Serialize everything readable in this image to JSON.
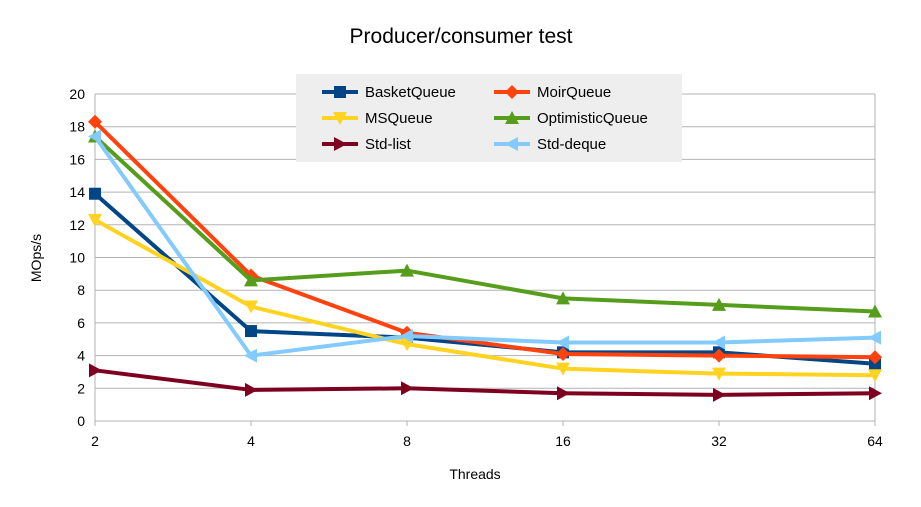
{
  "chart_data": {
    "type": "line",
    "title": "Producer/consumer test",
    "xlabel": "Threads",
    "ylabel": "MOps/s",
    "categories": [
      "2",
      "4",
      "8",
      "16",
      "32",
      "64"
    ],
    "ylim": [
      0,
      20
    ],
    "yticks": [
      0,
      2,
      4,
      6,
      8,
      10,
      12,
      14,
      16,
      18,
      20
    ],
    "grid": true,
    "legend_position": "top-center",
    "series": [
      {
        "name": "BasketQueue",
        "color": "#004586",
        "marker": "square",
        "values": [
          13.9,
          5.5,
          5.1,
          4.2,
          4.2,
          3.5
        ]
      },
      {
        "name": "MoirQueue",
        "color": "#ff420e",
        "marker": "diamond",
        "values": [
          18.3,
          8.9,
          5.4,
          4.1,
          4.0,
          3.9
        ]
      },
      {
        "name": "MSQueue",
        "color": "#ffd320",
        "marker": "triangle-down",
        "values": [
          12.3,
          7.0,
          4.7,
          3.2,
          2.9,
          2.8
        ]
      },
      {
        "name": "OptimisticQueue",
        "color": "#579d1c",
        "marker": "triangle-up",
        "values": [
          17.4,
          8.6,
          9.2,
          7.5,
          7.1,
          6.7
        ]
      },
      {
        "name": "Std-list",
        "color": "#7e0021",
        "marker": "triangle-right",
        "values": [
          3.1,
          1.9,
          2.0,
          1.7,
          1.6,
          1.7
        ]
      },
      {
        "name": "Std-deque",
        "color": "#83caff",
        "marker": "triangle-left",
        "values": [
          17.4,
          4.0,
          5.2,
          4.8,
          4.8,
          5.1
        ]
      }
    ]
  }
}
